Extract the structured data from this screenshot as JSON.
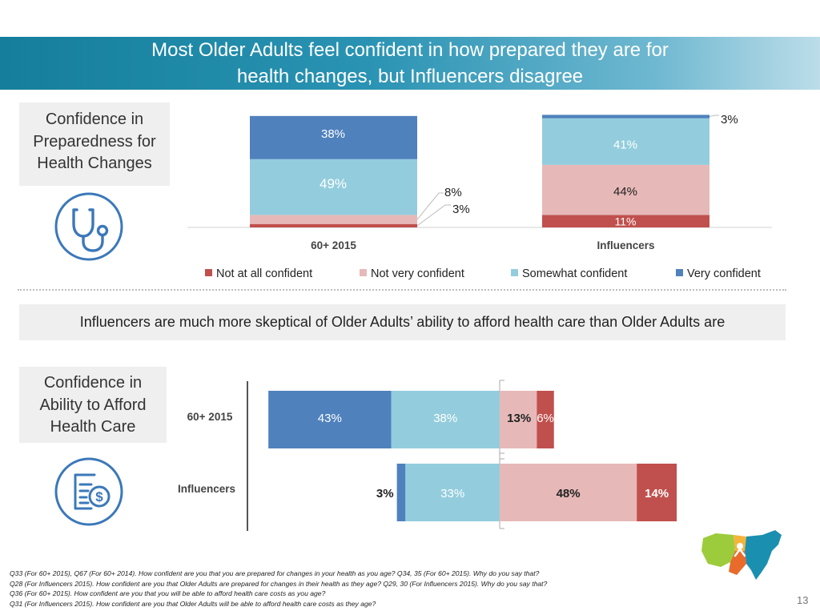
{
  "title": {
    "line1": "Most Older Adults feel confident in how prepared they are for",
    "line2": "health changes, but Influencers disagree"
  },
  "section1": {
    "label_lines": [
      "Confidence in",
      "Preparedness for",
      "Health Changes"
    ],
    "icon": "stethoscope-icon"
  },
  "section2": {
    "banner": "Influencers are much more skeptical of Older Adults’ ability to afford health care than Older Adults are",
    "label_lines": [
      "Confidence in",
      "Ability to Afford",
      "Health Care"
    ],
    "icon": "medical-bill-dollar-icon"
  },
  "colors": {
    "not_at_all": "#c0504d",
    "not_very": "#e6b9b8",
    "somewhat": "#93cddd",
    "very": "#4f81bd",
    "title_bar": "#1a87a6"
  },
  "legend": [
    "Not at all confident",
    "Not very confident",
    "Somewhat confident",
    "Very confident"
  ],
  "chart_data": [
    {
      "type": "bar",
      "orientation": "vertical",
      "stacked": true,
      "title": "Confidence in Preparedness for Health Changes",
      "categories": [
        "60+ 2015",
        "Influencers"
      ],
      "ylim": [
        0,
        100
      ],
      "series": [
        {
          "name": "Not at all confident",
          "values": [
            3,
            11
          ],
          "labels": [
            "3%",
            "11%"
          ]
        },
        {
          "name": "Not very confident",
          "values": [
            8,
            44
          ],
          "labels": [
            "8%",
            "44%"
          ]
        },
        {
          "name": "Somewhat confident",
          "values": [
            49,
            41
          ],
          "labels": [
            "49%",
            "41%"
          ]
        },
        {
          "name": "Very confident",
          "values": [
            38,
            3
          ],
          "labels": [
            "38%",
            "3%"
          ]
        }
      ]
    },
    {
      "type": "bar",
      "orientation": "horizontal",
      "stacked": true,
      "diverging": true,
      "title": "Confidence in Ability to Afford Health Care",
      "categories": [
        "60+ 2015",
        "Influencers"
      ],
      "series": [
        {
          "name": "Very confident",
          "values": [
            43,
            3
          ],
          "labels": [
            "43%",
            "3%"
          ]
        },
        {
          "name": "Somewhat confident",
          "values": [
            38,
            33
          ],
          "labels": [
            "38%",
            "33%"
          ]
        },
        {
          "name": "Not very confident",
          "values": [
            13,
            48
          ],
          "labels": [
            "13%",
            "48%"
          ]
        },
        {
          "name": "Not at all confident",
          "values": [
            6,
            14
          ],
          "labels": [
            "6%",
            "14%"
          ]
        }
      ]
    }
  ],
  "footnotes": [
    "Q33 (For 60+ 2015), Q67 (For 60+ 2014). How confident are you that you are prepared for changes in your health as you age? Q34, 35 (For 60+ 2015). Why do you say that?",
    "Q28 (For Influencers 2015). How confident are you that Older Adults are prepared for changes in their health as they age? Q29, 30 (For Influencers 2015). Why do you say that?",
    "Q36 (For 60+ 2015). How confident are you that you will be able to afford health care costs as you age?",
    "Q31 (For Influencers 2015). How confident are you that Older Adults will be able to afford health care costs as they age?"
  ],
  "page_number": "13",
  "logo": "us-map-logo"
}
